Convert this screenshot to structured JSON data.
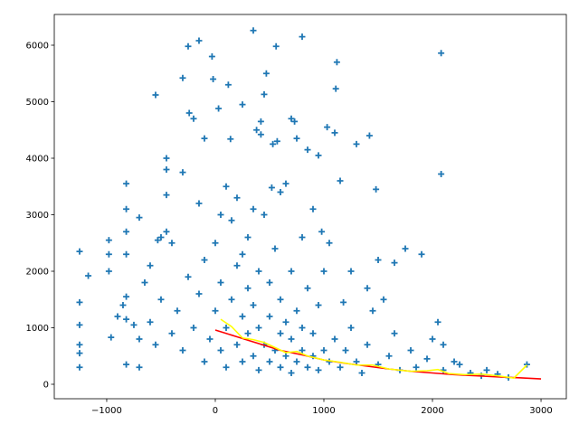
{
  "chart_data": {
    "type": "scatter",
    "xlim": [
      -1483,
      3233
    ],
    "ylim": [
      -256,
      6544
    ],
    "xticks": [
      {
        "value": -1000,
        "label": "−1000"
      },
      0,
      1000,
      2000,
      3000
    ],
    "yticks": [
      0,
      1000,
      2000,
      3000,
      4000,
      5000,
      6000
    ],
    "series": [
      {
        "type": "scatter",
        "marker": "+",
        "color": "#1f77b4",
        "x": [
          -1250,
          -1250,
          -1250,
          -1250,
          -1250,
          -1250,
          -1170,
          -980,
          -980,
          -960,
          -980,
          -820,
          -820,
          -820,
          -820,
          -820,
          -820,
          -820,
          -700,
          -700,
          -700,
          -550,
          -530,
          -450,
          -450,
          -450,
          -450,
          -300,
          -300,
          -250,
          -240,
          -200,
          -150,
          -100,
          -30,
          -20,
          30,
          120,
          140,
          250,
          350,
          380,
          420,
          420,
          450,
          470,
          520,
          530,
          560,
          570,
          650,
          700,
          730,
          750,
          800,
          850,
          950,
          980,
          1030,
          1100,
          1110,
          1120,
          1150,
          1180,
          1300,
          1420,
          1480,
          1500,
          1650,
          1750,
          1900,
          2080,
          2080,
          2050,
          2100,
          2200,
          2500,
          2870,
          -600,
          -550,
          -500,
          -400,
          -350,
          -300,
          -250,
          -200,
          -150,
          -100,
          -100,
          -50,
          0,
          0,
          50,
          50,
          100,
          100,
          150,
          150,
          200,
          200,
          250,
          250,
          300,
          300,
          300,
          350,
          350,
          400,
          400,
          400,
          450,
          450,
          500,
          500,
          500,
          550,
          550,
          600,
          600,
          600,
          650,
          650,
          700,
          700,
          700,
          750,
          750,
          800,
          800,
          850,
          850,
          900,
          900,
          950,
          950,
          1000,
          1000,
          1050,
          1100,
          1150,
          1200,
          1250,
          1300,
          1350,
          1400,
          1450,
          1500,
          1600,
          1650,
          1700,
          1800,
          1850,
          1950,
          2000,
          2100,
          2250,
          2350,
          2450,
          2600,
          2700,
          -900,
          -850,
          -750,
          -650,
          -600,
          -500,
          -400,
          250,
          350,
          600,
          200,
          100,
          50,
          -150,
          800,
          900,
          1050,
          1250,
          1400,
          1550
        ],
        "y": [
          2350,
          1450,
          1050,
          700,
          550,
          300,
          1920,
          2550,
          2000,
          830,
          2300,
          3550,
          3100,
          2700,
          2300,
          1550,
          1150,
          350,
          2950,
          800,
          300,
          5120,
          2550,
          4000,
          3800,
          3350,
          2700,
          5420,
          3750,
          5980,
          4800,
          4700,
          6080,
          4350,
          5800,
          5400,
          4880,
          5300,
          4340,
          4950,
          6260,
          4500,
          4650,
          4420,
          5130,
          5500,
          3480,
          4250,
          5980,
          4300,
          3550,
          4700,
          4650,
          4350,
          6150,
          4150,
          4050,
          2700,
          4550,
          4450,
          5230,
          5700,
          3600,
          1450,
          4250,
          4400,
          3450,
          2200,
          2150,
          2400,
          2300,
          5860,
          3720,
          1100,
          700,
          400,
          250,
          350,
          1100,
          700,
          1500,
          900,
          1300,
          600,
          1900,
          1000,
          1600,
          400,
          2200,
          800,
          1300,
          2500,
          600,
          1800,
          300,
          1000,
          1500,
          2900,
          700,
          2100,
          400,
          1200,
          900,
          1700,
          2600,
          500,
          1400,
          250,
          1000,
          2000,
          700,
          3000,
          400,
          1200,
          1800,
          600,
          2400,
          300,
          900,
          1500,
          500,
          1100,
          200,
          800,
          2000,
          400,
          1300,
          600,
          1000,
          300,
          1700,
          500,
          900,
          250,
          1400,
          600,
          2000,
          400,
          800,
          300,
          600,
          1000,
          400,
          200,
          700,
          1300,
          350,
          500,
          900,
          250,
          600,
          300,
          450,
          800,
          250,
          350,
          200,
          150,
          180,
          120,
          1200,
          1400,
          1050,
          1800,
          2100,
          2600,
          2500,
          2300,
          3100,
          3400,
          3300,
          3500,
          3000,
          3200,
          2600,
          3100,
          2500,
          2000,
          1700,
          1500
        ]
      },
      {
        "type": "line",
        "color": "#ff0000",
        "x": [
          0,
          200,
          400,
          600,
          800,
          1000,
          1200,
          1400,
          1600,
          1800,
          2000,
          2200,
          2400,
          2600,
          2800,
          3000
        ],
        "y": [
          960,
          840,
          720,
          600,
          520,
          430,
          370,
          320,
          270,
          230,
          200,
          170,
          150,
          130,
          115,
          95
        ]
      },
      {
        "type": "line",
        "color": "#ffff00",
        "x": [
          50,
          150,
          250,
          350,
          450,
          550,
          650,
          750,
          850,
          1000,
          1150,
          1300,
          1450,
          1600,
          1800,
          1950,
          2050,
          2150,
          2300,
          2450,
          2600,
          2750,
          2870
        ],
        "y": [
          1150,
          1020,
          820,
          790,
          740,
          650,
          560,
          580,
          500,
          430,
          390,
          340,
          340,
          270,
          230,
          240,
          260,
          190,
          170,
          180,
          150,
          110,
          340
        ]
      }
    ]
  }
}
